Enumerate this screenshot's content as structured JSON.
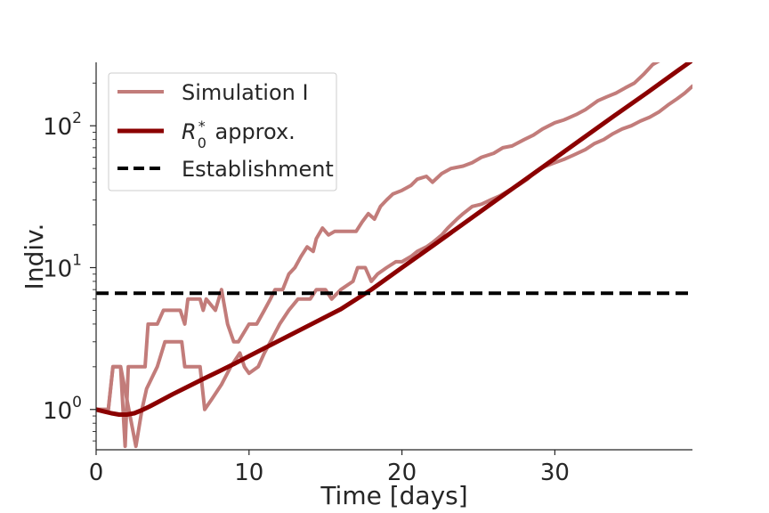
{
  "chart_data": {
    "type": "line",
    "xlabel": "Time [days]",
    "ylabel": "Indiv.",
    "xlim": [
      0,
      39
    ],
    "ylim": [
      0.52,
      280
    ],
    "yscale": "log",
    "x_ticks": [
      {
        "value": 0,
        "label": "0"
      },
      {
        "value": 10,
        "label": "10"
      },
      {
        "value": 20,
        "label": "20"
      },
      {
        "value": 30,
        "label": "30"
      }
    ],
    "y_ticks": [
      {
        "value": 1,
        "base": "10",
        "exp": "0"
      },
      {
        "value": 10,
        "base": "10",
        "exp": "1"
      },
      {
        "value": 100,
        "base": "10",
        "exp": "2"
      }
    ],
    "grid": false,
    "legend_position": "top-left",
    "legend": [
      {
        "key": "sim",
        "text": "Simulation I"
      },
      {
        "key": "approx",
        "r": "R",
        "sub": "0",
        "sup": "*",
        "text": " approx."
      },
      {
        "key": "est",
        "text": "Establishment"
      }
    ],
    "colors": {
      "simulation": "#c27c7a",
      "approx": "#8b0000",
      "establishment": "#000000",
      "axis": "#262626"
    },
    "establishment": 6.6,
    "series": [
      {
        "key": "sim1",
        "style": "simulation",
        "points": [
          [
            0,
            1
          ],
          [
            0.8,
            1
          ],
          [
            1.1,
            2
          ],
          [
            1.6,
            2
          ],
          [
            1.9,
            0.55
          ],
          [
            2.1,
            2
          ],
          [
            3.2,
            2
          ],
          [
            3.4,
            4
          ],
          [
            4.0,
            4
          ],
          [
            4.4,
            5
          ],
          [
            5.5,
            5
          ],
          [
            5.8,
            4
          ],
          [
            6.0,
            6
          ],
          [
            6.8,
            6
          ],
          [
            7.0,
            5
          ],
          [
            7.2,
            6
          ],
          [
            7.8,
            5
          ],
          [
            8.2,
            7
          ],
          [
            8.6,
            4
          ],
          [
            9.0,
            3
          ],
          [
            9.3,
            3
          ],
          [
            10.0,
            4
          ],
          [
            10.5,
            4
          ],
          [
            11.0,
            5
          ],
          [
            11.4,
            6
          ],
          [
            11.7,
            7
          ],
          [
            12.2,
            7
          ],
          [
            12.6,
            9
          ],
          [
            13.0,
            10
          ],
          [
            13.4,
            12
          ],
          [
            13.8,
            14
          ],
          [
            14.2,
            13
          ],
          [
            14.4,
            16
          ],
          [
            14.8,
            19
          ],
          [
            15.2,
            17
          ],
          [
            15.6,
            18
          ],
          [
            16.0,
            18
          ],
          [
            17.0,
            18
          ],
          [
            17.4,
            21
          ],
          [
            17.8,
            24
          ],
          [
            18.2,
            22
          ],
          [
            18.6,
            27
          ],
          [
            19.0,
            30
          ],
          [
            19.4,
            33
          ],
          [
            20.0,
            35
          ],
          [
            20.6,
            38
          ],
          [
            21.0,
            42
          ],
          [
            21.6,
            44
          ],
          [
            22.0,
            40
          ],
          [
            22.6,
            46
          ],
          [
            23.2,
            50
          ],
          [
            24.0,
            52
          ],
          [
            24.6,
            55
          ],
          [
            25.2,
            60
          ],
          [
            26.0,
            64
          ],
          [
            26.6,
            70
          ],
          [
            27.2,
            72
          ],
          [
            28.0,
            80
          ],
          [
            28.6,
            86
          ],
          [
            29.2,
            95
          ],
          [
            30.0,
            105
          ],
          [
            30.6,
            110
          ],
          [
            31.4,
            120
          ],
          [
            32.0,
            130
          ],
          [
            32.8,
            150
          ],
          [
            33.4,
            160
          ],
          [
            34.0,
            170
          ],
          [
            34.6,
            185
          ],
          [
            35.2,
            200
          ],
          [
            35.8,
            230
          ],
          [
            36.4,
            270
          ],
          [
            36.9,
            290
          ]
        ]
      },
      {
        "key": "sim2",
        "style": "simulation",
        "points": [
          [
            0,
            1
          ],
          [
            0.8,
            1
          ],
          [
            1.1,
            2
          ],
          [
            1.6,
            2
          ],
          [
            2.6,
            0.55
          ],
          [
            3.0,
            1
          ],
          [
            3.3,
            1.4
          ],
          [
            4.0,
            2
          ],
          [
            4.5,
            3
          ],
          [
            5.6,
            3
          ],
          [
            5.8,
            2
          ],
          [
            6.2,
            2
          ],
          [
            6.8,
            2
          ],
          [
            7.1,
            1
          ],
          [
            7.6,
            1.2
          ],
          [
            8.2,
            1.5
          ],
          [
            8.8,
            2
          ],
          [
            9.4,
            2.5
          ],
          [
            9.7,
            2
          ],
          [
            10.0,
            1.8
          ],
          [
            10.6,
            2
          ],
          [
            11.0,
            2.5
          ],
          [
            11.4,
            3
          ],
          [
            12.0,
            4
          ],
          [
            12.6,
            5
          ],
          [
            13.2,
            6
          ],
          [
            14.0,
            6
          ],
          [
            14.4,
            7
          ],
          [
            15.0,
            7
          ],
          [
            15.4,
            6
          ],
          [
            16.0,
            7
          ],
          [
            16.8,
            8
          ],
          [
            17.1,
            10
          ],
          [
            17.6,
            10
          ],
          [
            18.0,
            8
          ],
          [
            18.4,
            9
          ],
          [
            19.0,
            10
          ],
          [
            19.6,
            11
          ],
          [
            20.0,
            11
          ],
          [
            20.6,
            12
          ],
          [
            21.0,
            13
          ],
          [
            21.6,
            14
          ],
          [
            22.0,
            15
          ],
          [
            22.6,
            17
          ],
          [
            23.0,
            19
          ],
          [
            23.6,
            22
          ],
          [
            24.0,
            24
          ],
          [
            24.6,
            27
          ],
          [
            25.2,
            28
          ],
          [
            25.8,
            30
          ],
          [
            26.4,
            32
          ],
          [
            27.0,
            35
          ],
          [
            27.6,
            38
          ],
          [
            28.2,
            42
          ],
          [
            28.8,
            48
          ],
          [
            29.4,
            52
          ],
          [
            30.0,
            55
          ],
          [
            30.6,
            58
          ],
          [
            31.2,
            62
          ],
          [
            32.0,
            68
          ],
          [
            32.6,
            75
          ],
          [
            33.2,
            80
          ],
          [
            33.8,
            88
          ],
          [
            34.4,
            95
          ],
          [
            35.0,
            100
          ],
          [
            35.6,
            108
          ],
          [
            36.2,
            115
          ],
          [
            36.8,
            125
          ],
          [
            37.4,
            140
          ],
          [
            38.0,
            155
          ],
          [
            38.5,
            170
          ],
          [
            39.0,
            190
          ]
        ]
      },
      {
        "key": "approx",
        "style": "approx",
        "points": [
          [
            0,
            1
          ],
          [
            0.5,
            0.97
          ],
          [
            1,
            0.94
          ],
          [
            1.5,
            0.92
          ],
          [
            2,
            0.92
          ],
          [
            2.5,
            0.94
          ],
          [
            3,
            0.99
          ],
          [
            3.5,
            1.05
          ],
          [
            4,
            1.12
          ],
          [
            5,
            1.28
          ],
          [
            6,
            1.45
          ],
          [
            7,
            1.64
          ],
          [
            8,
            1.85
          ],
          [
            9,
            2.09
          ],
          [
            10,
            2.38
          ],
          [
            12,
            3.07
          ],
          [
            14,
            3.95
          ],
          [
            16,
            5.1
          ],
          [
            18,
            7.0
          ],
          [
            20,
            10.0
          ],
          [
            22,
            14.2
          ],
          [
            24,
            20.3
          ],
          [
            26,
            29.0
          ],
          [
            28,
            41.3
          ],
          [
            30,
            58.9
          ],
          [
            32,
            84.1
          ],
          [
            34,
            120
          ],
          [
            36,
            170
          ],
          [
            38,
            243
          ],
          [
            39,
            290
          ]
        ]
      }
    ]
  }
}
